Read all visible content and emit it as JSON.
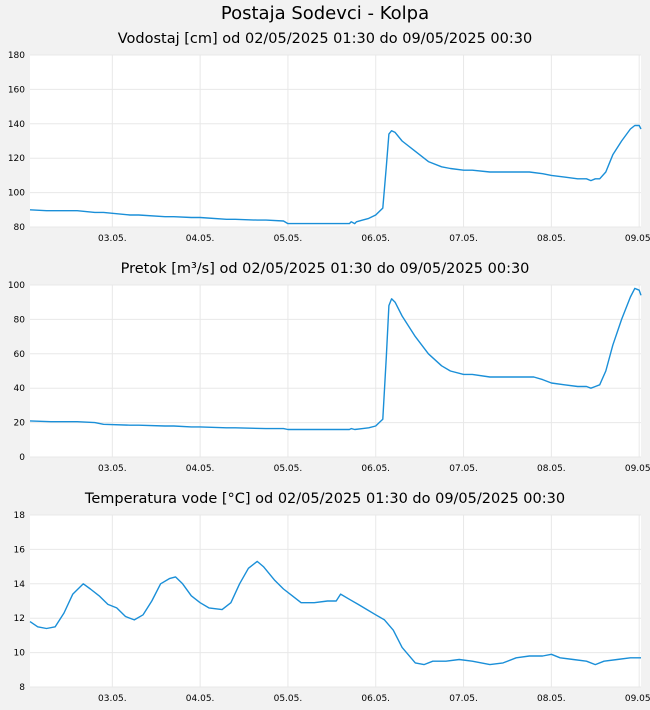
{
  "page": {
    "title": "Postaja Sodevci - Kolpa"
  },
  "chart_data": [
    {
      "type": "line",
      "title": "Vodostaj [cm] od 02/05/2025 01:30 do 09/05/2025 00:30",
      "x_unit": "day of May 2025",
      "x_range": [
        2.0625,
        9.02083
      ],
      "ylim": [
        80,
        180
      ],
      "yticks": [
        80,
        100,
        120,
        140,
        160,
        180
      ],
      "xticks": [
        {
          "label": "03.05.",
          "day": 3
        },
        {
          "label": "04.05.",
          "day": 4
        },
        {
          "label": "05.05.",
          "day": 5
        },
        {
          "label": "06.05.",
          "day": 6
        },
        {
          "label": "07.05.",
          "day": 7
        },
        {
          "label": "08.05.",
          "day": 8
        },
        {
          "label": "09.05.",
          "day": 9
        }
      ],
      "grid": true,
      "color": "#1a8fd8",
      "series": [
        {
          "x": [
            2.0625,
            2.25,
            2.5,
            2.6,
            2.8,
            2.9,
            3.2,
            3.3,
            3.6,
            3.7,
            3.9,
            4.0,
            4.3,
            4.4,
            4.65,
            4.75,
            4.95,
            5.0,
            5.3,
            5.5,
            5.7,
            5.72,
            5.76,
            5.78,
            5.85,
            5.92,
            6.0,
            6.08,
            6.12,
            6.15,
            6.18,
            6.22,
            6.3,
            6.45,
            6.6,
            6.75,
            6.85,
            7.0,
            7.1,
            7.3,
            7.5,
            7.75,
            7.9,
            8.0,
            8.15,
            8.3,
            8.4,
            8.45,
            8.5,
            8.55,
            8.62,
            8.7,
            8.8,
            8.9,
            8.95,
            9.0,
            9.02083
          ],
          "y": [
            90,
            89.5,
            89.5,
            89.5,
            88.5,
            88.5,
            87,
            87,
            86,
            86,
            85.5,
            85.5,
            84.5,
            84.5,
            84,
            84,
            83.5,
            82,
            82,
            82,
            82,
            83,
            82,
            83,
            84,
            85,
            87,
            91,
            115,
            134,
            136,
            135,
            130,
            124,
            118,
            115,
            114,
            113,
            113,
            112,
            112,
            112,
            111,
            110,
            109,
            108,
            108,
            107,
            108,
            108,
            112,
            122,
            130,
            137,
            139,
            139,
            137
          ]
        }
      ]
    },
    {
      "type": "line",
      "title": "Pretok [m³/s] od 02/05/2025 01:30 do 09/05/2025 00:30",
      "x_unit": "day of May 2025",
      "x_range": [
        2.0625,
        9.02083
      ],
      "ylim": [
        0,
        100
      ],
      "yticks": [
        0,
        20,
        40,
        60,
        80,
        100
      ],
      "xticks": [
        {
          "label": "03.05.",
          "day": 3
        },
        {
          "label": "04.05.",
          "day": 4
        },
        {
          "label": "05.05.",
          "day": 5
        },
        {
          "label": "06.05.",
          "day": 6
        },
        {
          "label": "07.05.",
          "day": 7
        },
        {
          "label": "08.05.",
          "day": 8
        },
        {
          "label": "09.05.",
          "day": 9
        }
      ],
      "grid": true,
      "color": "#1a8fd8",
      "series": [
        {
          "x": [
            2.0625,
            2.3,
            2.6,
            2.8,
            2.9,
            3.2,
            3.3,
            3.6,
            3.7,
            3.9,
            4.0,
            4.3,
            4.4,
            4.75,
            4.95,
            5.0,
            5.3,
            5.7,
            5.72,
            5.76,
            5.85,
            5.92,
            6.0,
            6.08,
            6.12,
            6.15,
            6.18,
            6.22,
            6.3,
            6.45,
            6.6,
            6.75,
            6.85,
            7.0,
            7.1,
            7.3,
            7.5,
            7.7,
            7.8,
            7.9,
            8.0,
            8.15,
            8.3,
            8.4,
            8.45,
            8.5,
            8.55,
            8.62,
            8.7,
            8.8,
            8.9,
            8.95,
            9.0,
            9.02083
          ],
          "y": [
            21,
            20.5,
            20.5,
            20,
            19,
            18.5,
            18.5,
            18,
            18,
            17.5,
            17.5,
            17,
            17,
            16.5,
            16.5,
            16,
            16,
            16,
            16.5,
            16,
            16.5,
            17,
            18,
            22,
            58,
            88,
            92,
            90,
            82,
            70,
            60,
            53,
            50,
            48,
            48,
            46.5,
            46.5,
            46.5,
            46.5,
            45,
            43,
            42,
            41,
            41,
            40,
            41,
            42,
            50,
            65,
            80,
            93,
            98,
            97,
            94
          ]
        }
      ]
    },
    {
      "type": "line",
      "title": "Temperatura vode [°C] od 02/05/2025 01:30 do 09/05/2025 00:30",
      "x_unit": "day of May 2025",
      "x_range": [
        2.0625,
        9.02083
      ],
      "ylim": [
        8,
        18
      ],
      "yticks": [
        8,
        10,
        12,
        14,
        16,
        18
      ],
      "xticks": [
        {
          "label": "03.05.",
          "day": 3
        },
        {
          "label": "04.05.",
          "day": 4
        },
        {
          "label": "05.05.",
          "day": 5
        },
        {
          "label": "06.05.",
          "day": 6
        },
        {
          "label": "07.05.",
          "day": 7
        },
        {
          "label": "08.05.",
          "day": 8
        },
        {
          "label": "09.05.",
          "day": 9
        }
      ],
      "grid": true,
      "color": "#1a8fd8",
      "series": [
        {
          "x": [
            2.0625,
            2.15,
            2.25,
            2.35,
            2.45,
            2.55,
            2.67,
            2.75,
            2.85,
            2.95,
            3.05,
            3.15,
            3.25,
            3.35,
            3.45,
            3.55,
            3.65,
            3.72,
            3.8,
            3.9,
            4.0,
            4.1,
            4.25,
            4.35,
            4.45,
            4.55,
            4.65,
            4.72,
            4.85,
            4.95,
            5.05,
            5.15,
            5.3,
            5.45,
            5.55,
            5.6,
            5.7,
            5.8,
            5.9,
            6.0,
            6.1,
            6.2,
            6.3,
            6.45,
            6.55,
            6.65,
            6.8,
            6.95,
            7.1,
            7.3,
            7.45,
            7.6,
            7.75,
            7.9,
            8.0,
            8.1,
            8.25,
            8.4,
            8.5,
            8.6,
            8.75,
            8.9,
            9.02083
          ],
          "y": [
            11.8,
            11.5,
            11.4,
            11.5,
            12.3,
            13.4,
            14.0,
            13.7,
            13.3,
            12.8,
            12.6,
            12.1,
            11.9,
            12.2,
            13.0,
            14.0,
            14.3,
            14.4,
            14.0,
            13.3,
            12.9,
            12.6,
            12.5,
            12.9,
            14.0,
            14.9,
            15.3,
            15.0,
            14.2,
            13.7,
            13.3,
            12.9,
            12.9,
            13.0,
            13.0,
            13.4,
            13.1,
            12.8,
            12.5,
            12.2,
            11.9,
            11.3,
            10.3,
            9.4,
            9.3,
            9.5,
            9.5,
            9.6,
            9.5,
            9.3,
            9.4,
            9.7,
            9.8,
            9.8,
            9.9,
            9.7,
            9.6,
            9.5,
            9.3,
            9.5,
            9.6,
            9.7,
            9.7
          ]
        }
      ]
    }
  ]
}
